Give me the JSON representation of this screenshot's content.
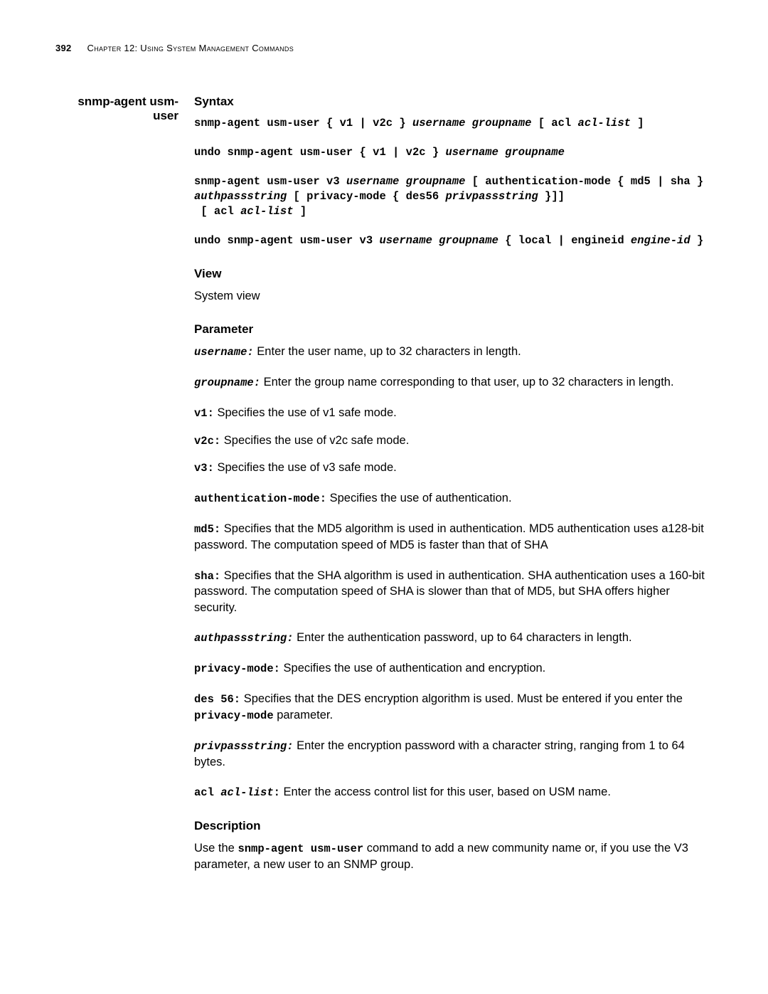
{
  "header": {
    "page_number": "392",
    "chapter_text": "Chapter 12: Using System Management Commands"
  },
  "sidebar": {
    "command_name": "snmp-agent usm-user"
  },
  "sections": {
    "syntax": {
      "heading": "Syntax",
      "line1_a": "snmp-agent usm-user { v1 | v2c } ",
      "line1_b": "username groupname",
      "line1_c": " [ acl ",
      "line1_d": "acl-list",
      "line1_e": " ]",
      "line2_a": "undo snmp-agent usm-user { v1 | v2c } ",
      "line2_b": "username groupname",
      "line3_a": "snmp-agent usm-user v3 ",
      "line3_b": "username groupname",
      "line3_c": " [ authentication-mode { md5 | sha } ",
      "line3_d": "authpassstring",
      "line3_e": " [ privacy-mode { des56 ",
      "line3_f": "privpassstring",
      "line3_g": " }]]\n [ acl ",
      "line3_h": "acl-list",
      "line3_i": " ]",
      "line4_a": "undo snmp-agent usm-user v3 ",
      "line4_b": "username groupname",
      "line4_c": " { local | engineid ",
      "line4_d": "engine-id",
      "line4_e": " }"
    },
    "view": {
      "heading": "View",
      "text": "System view"
    },
    "parameter": {
      "heading": "Parameter",
      "username_k": "username:",
      "username_t": " Enter the user name, up to 32 characters in length.",
      "groupname_k": "groupname:",
      "groupname_t": " Enter the group name corresponding to that user, up to 32 characters in length.",
      "v1_k": "v1:",
      "v1_t": " Specifies the use of v1 safe mode.",
      "v2c_k": "v2c:",
      "v2c_t": " Specifies the use of v2c safe mode.",
      "v3_k": "v3:",
      "v3_t": " Specifies the use of v3 safe mode.",
      "auth_k": "authentication-mode:",
      "auth_t": "  Specifies the use of authentication.",
      "md5_k": "md5:",
      "md5_t": " Specifies that the MD5 algorithm is used in authentication. MD5 authentication uses a128-bit password. The computation speed of MD5 is faster than that of SHA",
      "sha_k": "sha:",
      "sha_t": " Specifies that the SHA algorithm is used in authentication. SHA authentication uses a 160-bit password. The computation speed of SHA is slower than that of MD5, but SHA offers higher security.",
      "authpass_k": "authpassstring:",
      "authpass_t": " Enter the authentication password, up to 64 characters in length.",
      "privmode_k": "privacy-mode:",
      "privmode_t": " Specifies the use of authentication and encryption.",
      "des_k": "des 56:",
      "des_t1": " Specifies that the DES encryption algorithm is used. Must be entered if you enter the ",
      "des_inline": "privacy-mode",
      "des_t2": " parameter.",
      "privpass_k": "privpassstring:",
      "privpass_t": " Enter the encryption password with a character string, ranging from 1 to 64 bytes.",
      "acl_k1": "acl ",
      "acl_k2": "acl-list",
      "acl_k3": ":",
      "acl_t": "  Enter the access control list for this user, based on USM name."
    },
    "description": {
      "heading": "Description",
      "t1": "Use the ",
      "cmd": "snmp-agent usm-user",
      "t2": " command to add a new community name or, if you use the V3 parameter, a new user to an SNMP group."
    }
  }
}
